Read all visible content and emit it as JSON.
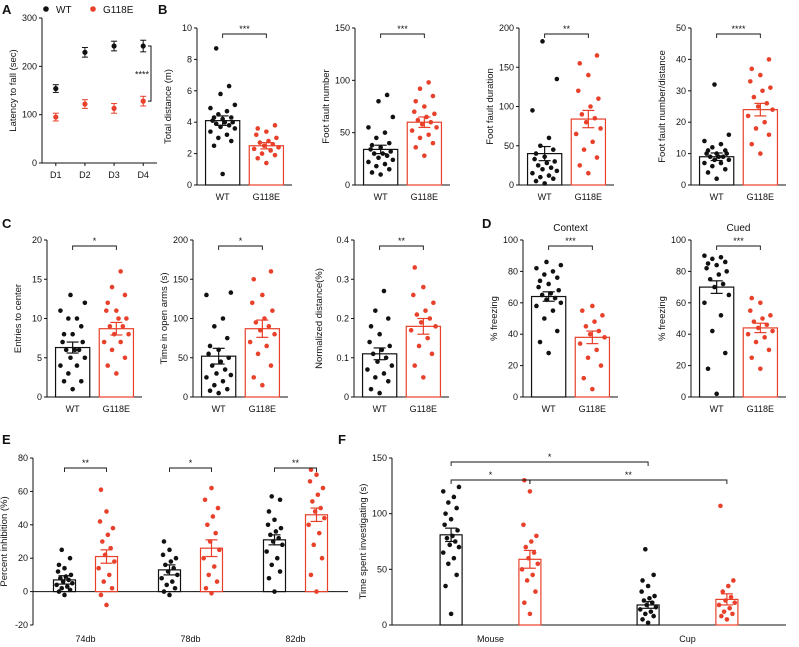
{
  "colors": {
    "wt": "#111111",
    "mut": "#e8402a",
    "axis": "#111111"
  },
  "legend": {
    "wt": "WT",
    "mut": "G118E"
  },
  "chart_data": [
    {
      "id": "A",
      "panel": "A",
      "type": "line",
      "ylabel": "Latency to fall (sec)",
      "ylim": [
        0,
        300
      ],
      "yticks": [
        0,
        100,
        200,
        300
      ],
      "categories": [
        "D1",
        "D2",
        "D3",
        "D4"
      ],
      "series": [
        {
          "name": "WT",
          "values": [
            154,
            229,
            242,
            242
          ],
          "err": [
            8,
            10,
            10,
            12
          ]
        },
        {
          "name": "G118E",
          "values": [
            95,
            122,
            113,
            128
          ],
          "err": [
            8,
            9,
            10,
            10
          ]
        }
      ],
      "significance": [
        {
          "label": "****"
        }
      ]
    },
    {
      "id": "B1",
      "panel": "B",
      "type": "bar",
      "ylabel": "Total distance (m)",
      "ylim": [
        0,
        10
      ],
      "yticks": [
        0,
        2,
        4,
        6,
        8,
        10
      ],
      "categories": [
        "WT",
        "G118E"
      ],
      "values": [
        4.1,
        2.5
      ],
      "err": [
        0.3,
        0.2
      ],
      "points": [
        [
          0.7,
          2.5,
          2.8,
          3.0,
          3.2,
          3.4,
          3.6,
          3.7,
          3.8,
          3.9,
          4.0,
          4.0,
          4.1,
          4.2,
          4.3,
          4.3,
          4.5,
          4.7,
          4.9,
          5.1,
          5.8,
          6.3,
          8.7
        ],
        [
          1.4,
          1.7,
          1.9,
          2.0,
          2.2,
          2.3,
          2.4,
          2.5,
          2.6,
          2.7,
          2.8,
          3.0,
          3.2,
          3.4,
          3.6,
          3.8
        ]
      ],
      "significance": [
        {
          "label": "***"
        }
      ]
    },
    {
      "id": "B2",
      "panel": "",
      "type": "bar",
      "ylabel": "Foot fault number",
      "ylim": [
        0,
        150
      ],
      "yticks": [
        0,
        50,
        100,
        150
      ],
      "categories": [
        "WT",
        "G118E"
      ],
      "values": [
        34,
        60
      ],
      "err": [
        4,
        5
      ],
      "points": [
        [
          10,
          12,
          15,
          18,
          20,
          22,
          24,
          26,
          28,
          30,
          30,
          32,
          34,
          36,
          38,
          40,
          45,
          50,
          55,
          65,
          80,
          86
        ],
        [
          28,
          36,
          40,
          45,
          48,
          52,
          55,
          58,
          60,
          62,
          65,
          68,
          70,
          75,
          80,
          85,
          92,
          98
        ]
      ],
      "significance": [
        {
          "label": "***"
        }
      ]
    },
    {
      "id": "B3",
      "panel": "",
      "type": "bar",
      "ylabel": "Foot fault duration",
      "ylim": [
        0,
        200
      ],
      "yticks": [
        0,
        50,
        100,
        150,
        200
      ],
      "categories": [
        "WT",
        "G118E"
      ],
      "values": [
        40,
        84
      ],
      "err": [
        9,
        11
      ],
      "points": [
        [
          2,
          5,
          8,
          10,
          12,
          15,
          18,
          20,
          22,
          25,
          28,
          30,
          33,
          36,
          40,
          45,
          50,
          60,
          95,
          135,
          183
        ],
        [
          15,
          25,
          35,
          45,
          55,
          65,
          72,
          80,
          85,
          90,
          100,
          110,
          120,
          140,
          155,
          165
        ]
      ],
      "significance": [
        {
          "label": "**"
        }
      ]
    },
    {
      "id": "B4",
      "panel": "",
      "type": "bar",
      "ylabel": "Foot fault number/distance",
      "ylim": [
        0,
        50
      ],
      "yticks": [
        0,
        10,
        20,
        30,
        40,
        50
      ],
      "categories": [
        "WT",
        "G118E"
      ],
      "values": [
        9,
        24
      ],
      "err": [
        1.2,
        2
      ],
      "points": [
        [
          2,
          4,
          5,
          6,
          7,
          7,
          8,
          8,
          9,
          9,
          9,
          10,
          10,
          10,
          11,
          11,
          12,
          13,
          14,
          16,
          32
        ],
        [
          10,
          13,
          16,
          18,
          20,
          22,
          24,
          25,
          26,
          28,
          30,
          31,
          33,
          35,
          37,
          40
        ]
      ],
      "significance": [
        {
          "label": "****"
        }
      ]
    },
    {
      "id": "C1",
      "panel": "C",
      "type": "bar",
      "ylabel": "Entries to center",
      "ylim": [
        0,
        20
      ],
      "yticks": [
        0,
        5,
        10,
        15,
        20
      ],
      "categories": [
        "WT",
        "G118E"
      ],
      "values": [
        6.3,
        8.7
      ],
      "err": [
        0.7,
        0.8
      ],
      "points": [
        [
          1,
          2,
          2,
          3,
          4,
          4,
          5,
          5,
          6,
          6,
          6,
          7,
          7,
          8,
          8,
          9,
          10,
          10,
          11,
          12,
          13
        ],
        [
          3,
          4,
          5,
          6,
          7,
          7,
          8,
          8,
          9,
          9,
          10,
          10,
          11,
          11,
          12,
          13,
          14,
          16
        ]
      ],
      "significance": [
        {
          "label": "*"
        }
      ]
    },
    {
      "id": "C2",
      "panel": "",
      "type": "bar",
      "ylabel": "Time in open arms (s)",
      "ylim": [
        0,
        200
      ],
      "yticks": [
        0,
        50,
        100,
        150,
        200
      ],
      "categories": [
        "WT",
        "G118E"
      ],
      "values": [
        52,
        87
      ],
      "err": [
        10,
        11
      ],
      "points": [
        [
          5,
          8,
          10,
          15,
          20,
          25,
          28,
          30,
          35,
          40,
          45,
          50,
          55,
          60,
          65,
          75,
          90,
          100,
          130,
          133
        ],
        [
          15,
          25,
          40,
          55,
          65,
          70,
          80,
          85,
          90,
          95,
          100,
          110,
          120,
          130,
          150,
          160
        ]
      ],
      "significance": [
        {
          "label": "*"
        }
      ]
    },
    {
      "id": "C3",
      "panel": "",
      "type": "bar",
      "ylabel": "Normalized distance(%)",
      "ylim": [
        0,
        0.4
      ],
      "yticks": [
        0.0,
        0.1,
        0.2,
        0.3,
        0.4
      ],
      "categories": [
        "WT",
        "G118E"
      ],
      "values": [
        0.11,
        0.18
      ],
      "err": [
        0.015,
        0.02
      ],
      "points": [
        [
          0.01,
          0.02,
          0.04,
          0.05,
          0.06,
          0.07,
          0.08,
          0.09,
          0.1,
          0.11,
          0.12,
          0.13,
          0.14,
          0.16,
          0.18,
          0.2,
          0.22,
          0.27
        ],
        [
          0.05,
          0.08,
          0.11,
          0.13,
          0.15,
          0.17,
          0.18,
          0.19,
          0.2,
          0.21,
          0.22,
          0.24,
          0.26,
          0.28,
          0.33
        ]
      ],
      "significance": [
        {
          "label": "**"
        }
      ]
    },
    {
      "id": "D1",
      "panel": "D",
      "type": "bar",
      "title": "Context",
      "ylabel": "% freezing",
      "ylim": [
        0,
        100
      ],
      "yticks": [
        0,
        20,
        40,
        60,
        80,
        100
      ],
      "categories": [
        "WT",
        "G118E"
      ],
      "values": [
        64,
        38
      ],
      "err": [
        3,
        4
      ],
      "points": [
        [
          28,
          35,
          42,
          50,
          55,
          58,
          60,
          62,
          63,
          65,
          66,
          68,
          70,
          72,
          74,
          76,
          78,
          80,
          82,
          84,
          86
        ],
        [
          5,
          12,
          20,
          25,
          30,
          34,
          38,
          40,
          42,
          45,
          48,
          52,
          55,
          58
        ]
      ],
      "significance": [
        {
          "label": "***"
        }
      ]
    },
    {
      "id": "D2",
      "panel": "",
      "type": "bar",
      "title": "Cued",
      "ylabel": "% freezing",
      "ylim": [
        0,
        100
      ],
      "yticks": [
        0,
        20,
        40,
        60,
        80,
        100
      ],
      "categories": [
        "WT",
        "G118E"
      ],
      "values": [
        70,
        44
      ],
      "err": [
        4,
        3
      ],
      "points": [
        [
          2,
          18,
          28,
          42,
          52,
          60,
          65,
          70,
          72,
          75,
          78,
          80,
          82,
          84,
          85,
          86,
          88,
          89,
          90
        ],
        [
          18,
          25,
          30,
          35,
          38,
          40,
          42,
          44,
          46,
          48,
          50,
          52,
          55,
          60,
          63
        ]
      ],
      "significance": [
        {
          "label": "***"
        }
      ]
    },
    {
      "id": "E",
      "panel": "E",
      "type": "bar",
      "ylabel": "Percent inhibition (%)",
      "ylim": [
        -20,
        80
      ],
      "yticks": [
        -20,
        0,
        20,
        40,
        60,
        80
      ],
      "categories": [
        "74db",
        "78db",
        "82db"
      ],
      "series": [
        {
          "name": "WT",
          "values": [
            7,
            13,
            31
          ],
          "err": [
            2.5,
            3,
            3
          ]
        },
        {
          "name": "G118E",
          "values": [
            21,
            26,
            46
          ],
          "err": [
            4,
            5,
            4
          ]
        }
      ],
      "points": [
        [
          [
            -2,
            0,
            1,
            2,
            3,
            4,
            5,
            6,
            7,
            8,
            9,
            10,
            12,
            14,
            16,
            20,
            25
          ],
          [
            -2,
            0,
            2,
            4,
            6,
            8,
            10,
            12,
            14,
            16,
            18,
            20,
            22,
            25,
            30
          ],
          [
            0,
            8,
            12,
            16,
            20,
            24,
            28,
            30,
            32,
            34,
            36,
            38,
            40,
            43,
            48,
            55,
            57
          ]
        ],
        [
          [
            -8,
            -2,
            2,
            6,
            10,
            14,
            18,
            22,
            26,
            30,
            34,
            38,
            42,
            48,
            61
          ],
          [
            -1,
            2,
            6,
            10,
            15,
            20,
            25,
            30,
            35,
            40,
            45,
            50,
            55,
            62
          ],
          [
            0,
            10,
            20,
            28,
            35,
            40,
            44,
            48,
            50,
            54,
            58,
            62,
            66,
            70,
            73
          ]
        ]
      ],
      "significance": [
        {
          "label": "**"
        },
        {
          "label": "*"
        },
        {
          "label": "**"
        }
      ]
    },
    {
      "id": "F",
      "panel": "F",
      "type": "bar",
      "ylabel": "Time spent investigating (s)",
      "ylim": [
        0,
        150
      ],
      "yticks": [
        0,
        50,
        100,
        150
      ],
      "categories": [
        "Mouse",
        "Cup"
      ],
      "series": [
        {
          "name": "WT",
          "values": [
            81,
            18
          ],
          "err": [
            6,
            3
          ]
        },
        {
          "name": "G118E",
          "values": [
            59,
            23
          ],
          "err": [
            8,
            5
          ]
        }
      ],
      "points": [
        [
          [
            10,
            35,
            45,
            55,
            60,
            65,
            70,
            72,
            75,
            78,
            80,
            85,
            90,
            95,
            100,
            105,
            110,
            115,
            120,
            124
          ],
          [
            2,
            5,
            8,
            10,
            12,
            14,
            16,
            18,
            20,
            22,
            24,
            26,
            30,
            35,
            40,
            45,
            68
          ]
        ],
        [
          [
            10,
            20,
            30,
            40,
            45,
            50,
            55,
            60,
            65,
            70,
            75,
            80,
            90,
            120,
            130
          ],
          [
            5,
            8,
            10,
            12,
            15,
            18,
            20,
            22,
            25,
            30,
            35,
            40,
            107
          ]
        ]
      ],
      "significance": [
        {
          "label": "*"
        },
        {
          "label": "*"
        },
        {
          "label": "**"
        }
      ]
    }
  ]
}
